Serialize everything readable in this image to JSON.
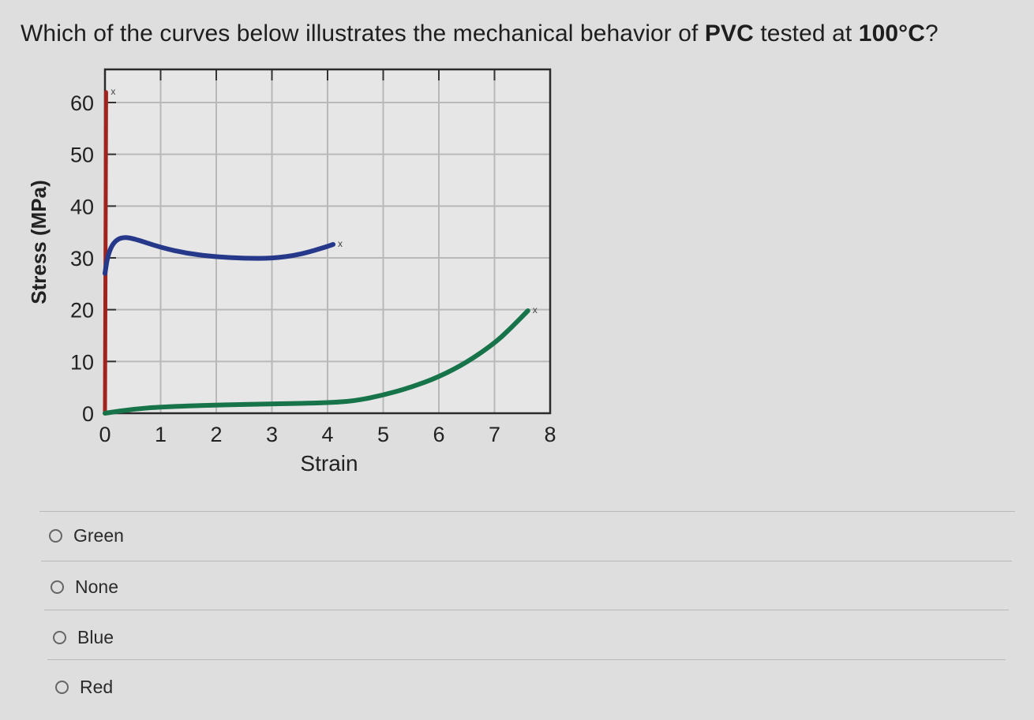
{
  "question": {
    "prefix": "Which of the curves below illustrates the mechanical behavior of ",
    "bold_material": "PVC",
    "middle": " tested at ",
    "bold_temperature": "100°C",
    "suffix": "?"
  },
  "chart_data": {
    "type": "line",
    "xlabel": "Strain",
    "ylabel": "Stress (MPa)",
    "xlim": [
      0,
      8
    ],
    "ylim": [
      0,
      60
    ],
    "x_ticks": [
      "0",
      "1",
      "2",
      "3",
      "4",
      "5",
      "6",
      "7",
      "8"
    ],
    "y_ticks": [
      "0",
      "10",
      "20",
      "30",
      "40",
      "50",
      "60"
    ],
    "grid": true,
    "series": [
      {
        "color": "#a0231e",
        "end_marker": "x",
        "points": [
          [
            0,
            0
          ],
          [
            0.02,
            62
          ]
        ]
      },
      {
        "color": "#25388a",
        "end_marker": "x",
        "points": [
          [
            0,
            27
          ],
          [
            0.05,
            30.5
          ],
          [
            0.15,
            33
          ],
          [
            0.3,
            34
          ],
          [
            0.5,
            33.8
          ],
          [
            1.0,
            32
          ],
          [
            1.5,
            30.8
          ],
          [
            2.0,
            30.2
          ],
          [
            2.5,
            29.9
          ],
          [
            3.0,
            29.9
          ],
          [
            3.5,
            30.6
          ],
          [
            4.0,
            32.2
          ],
          [
            4.1,
            32.6
          ]
        ]
      },
      {
        "color": "#17734a",
        "end_marker": "x",
        "points": [
          [
            0,
            0
          ],
          [
            0.5,
            0.8
          ],
          [
            1.0,
            1.2
          ],
          [
            2.0,
            1.6
          ],
          [
            3.0,
            1.8
          ],
          [
            4.0,
            2.0
          ],
          [
            4.5,
            2.4
          ],
          [
            5.0,
            3.5
          ],
          [
            5.5,
            5.0
          ],
          [
            6.0,
            7.0
          ],
          [
            6.5,
            9.8
          ],
          [
            7.0,
            13.5
          ],
          [
            7.3,
            16.5
          ],
          [
            7.6,
            19.8
          ]
        ]
      }
    ]
  },
  "options": [
    {
      "label": "Green"
    },
    {
      "label": "None"
    },
    {
      "label": "Blue"
    },
    {
      "label": "Red"
    }
  ]
}
